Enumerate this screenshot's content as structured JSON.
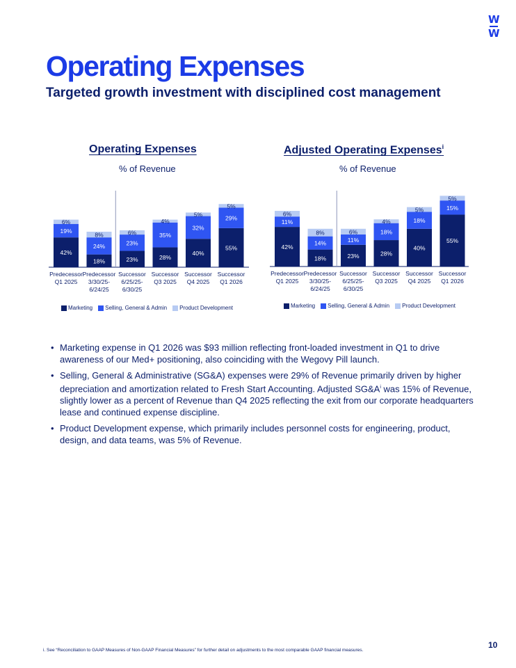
{
  "logo": {
    "line1": "W",
    "line2": "W"
  },
  "title": "Operating Expenses",
  "subtitle": "Targeted growth investment with disciplined cost management",
  "colors": {
    "marketing": "#0c1f6b",
    "sga": "#2f55f2",
    "product": "#b7cbf3"
  },
  "legend": {
    "marketing": "Marketing",
    "sga": "Selling, General & Admin",
    "product": "Product Development"
  },
  "chart_data": [
    {
      "type": "bar",
      "stacked": true,
      "title": "Operating Expenses",
      "subtitle": "% of Revenue",
      "categories": [
        [
          "Predecessor",
          "Q1 2025"
        ],
        [
          "Predecessor",
          "3/30/25-",
          "6/24/25"
        ],
        [
          "Successor",
          "6/25/25-",
          "6/30/25"
        ],
        [
          "Successor",
          "Q3 2025"
        ],
        [
          "Successor",
          "Q4 2025"
        ],
        [
          "Successor",
          "Q1 2026"
        ]
      ],
      "series": [
        {
          "name": "Marketing",
          "values": [
            42,
            18,
            23,
            28,
            40,
            55
          ]
        },
        {
          "name": "Selling, General & Admin",
          "values": [
            19,
            24,
            23,
            35,
            32,
            29
          ]
        },
        {
          "name": "Product Development",
          "values": [
            6,
            8,
            6,
            4,
            5,
            5
          ]
        }
      ],
      "divider_after": 1,
      "legend_position": "bottom-left"
    },
    {
      "type": "bar",
      "stacked": true,
      "title": "Adjusted Operating Expenses",
      "title_sup": "i",
      "subtitle": "% of Revenue",
      "categories": [
        [
          "Predecessor",
          "Q1 2025"
        ],
        [
          "Predecessor",
          "3/30/25-",
          "6/24/25"
        ],
        [
          "Successor",
          "6/25/25-",
          "6/30/25"
        ],
        [
          "Successor",
          "Q3 2025"
        ],
        [
          "Successor",
          "Q4 2025"
        ],
        [
          "Successor",
          "Q1 2026"
        ]
      ],
      "series": [
        {
          "name": "Marketing",
          "values": [
            42,
            18,
            23,
            28,
            40,
            55
          ]
        },
        {
          "name": "Selling, General & Admin",
          "values": [
            11,
            14,
            11,
            18,
            18,
            15
          ]
        },
        {
          "name": "Product Development",
          "values": [
            6,
            8,
            6,
            4,
            5,
            5
          ]
        }
      ],
      "divider_after": 1,
      "legend_position": "bottom-left"
    }
  ],
  "bullets": [
    {
      "text": "Marketing expense in Q1 2026 was $93 million reflecting front-loaded investment in Q1 to drive awareness of our Med+ positioning, also coinciding with the Wegovy Pill launch."
    },
    {
      "pre": "Selling, General & Administrative (SG&A) expenses were 29% of Revenue primarily driven by higher depreciation and amortization related to Fresh Start Accounting. Adjusted SG&A",
      "sup": "i",
      "post": " was 15% of Revenue, slightly lower as a percent of Revenue than Q4 2025 reflecting the exit from our corporate headquarters lease and continued expense discipline."
    },
    {
      "text": "Product Development expense, which primarily includes personnel costs for engineering, product, design, and data teams, was 5% of Revenue."
    }
  ],
  "footnote": "i. See “Reconciliation to GAAP Measures of Non-GAAP Financial Measures” for further detail on adjustments to the most comparable GAAP financial measures.",
  "page_number": "10"
}
